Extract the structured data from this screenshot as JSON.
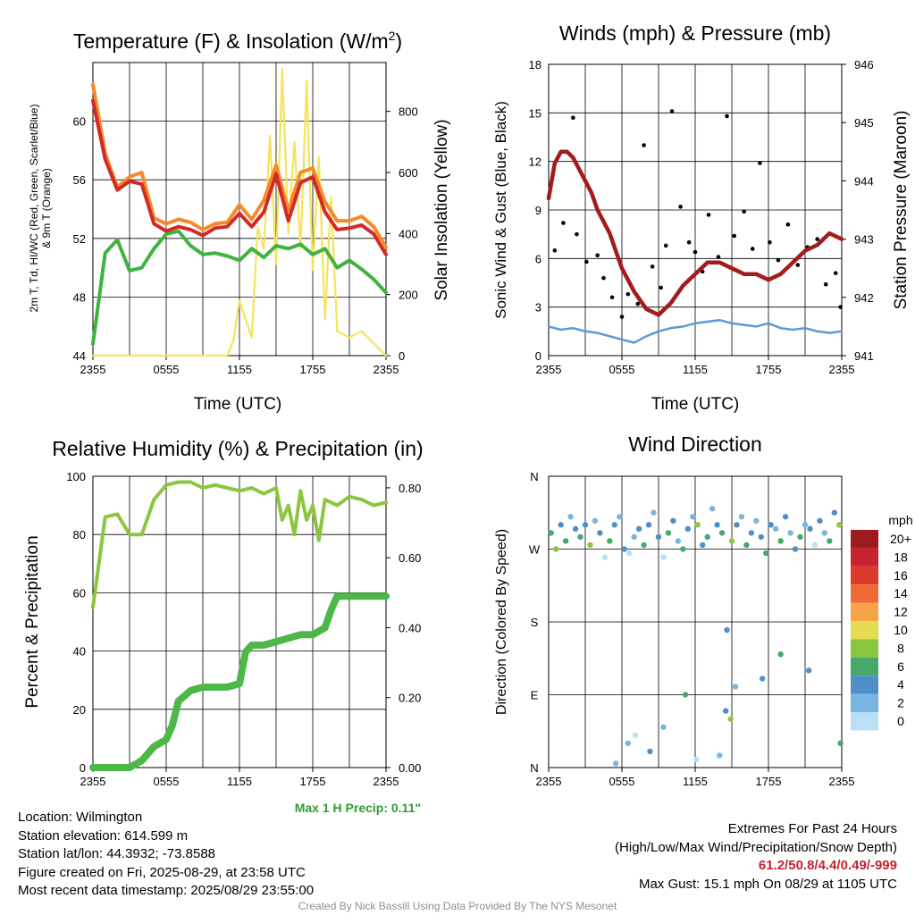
{
  "colors": {
    "temp_red": "#d42a26",
    "temp_orange": "#f58a2a",
    "temp_green": "#3fb33f",
    "insolation_yellow": "#f6e35a",
    "wind_blue": "#5b9bd5",
    "pressure_maroon": "#a31b1b",
    "rh_green": "#8cc63f",
    "precip_green": "#4cb848"
  },
  "chart_data": [
    {
      "id": "temp",
      "type": "line",
      "title": "Temperature (F) & Insolation (W/m²)",
      "title_main": "Temperature (F) & Insolation (W/m",
      "title_sup": "2",
      "title_end": ")",
      "xlabel": "Time (UTC)",
      "ylabel_line1": "2m T, Td, HI/WC (Red, Green, Scarlet/Blue)",
      "ylabel_line2": "& 9m T (Orange)",
      "y2label": "Solar Insolation (Yellow)",
      "xticks": [
        "2355",
        "0555",
        "1155",
        "1755",
        "2355"
      ],
      "ylim": [
        44,
        64
      ],
      "yticks": [
        44,
        48,
        52,
        56,
        60
      ],
      "y2lim": [
        0,
        960
      ],
      "y2ticks": [
        0,
        200,
        400,
        600,
        800
      ],
      "series": [
        {
          "key": "orange",
          "x": [
            0,
            1,
            2,
            3,
            4,
            5,
            6,
            7,
            8,
            9,
            10,
            11,
            12,
            13,
            14,
            15,
            16,
            17,
            18,
            19,
            20,
            21,
            22,
            23,
            24
          ],
          "values": [
            62.5,
            57.8,
            55.5,
            56.2,
            56.5,
            53.4,
            53.0,
            53.3,
            53.1,
            52.6,
            53.0,
            53.1,
            54.3,
            53.3,
            54.6,
            57.0,
            53.9,
            56.5,
            56.8,
            54.5,
            53.2,
            53.2,
            53.5,
            52.8,
            51.4
          ]
        },
        {
          "key": "red",
          "x": [
            0,
            1,
            2,
            3,
            4,
            5,
            6,
            7,
            8,
            9,
            10,
            11,
            12,
            13,
            14,
            15,
            16,
            17,
            18,
            19,
            20,
            21,
            22,
            23,
            24
          ],
          "values": [
            61.4,
            57.4,
            55.3,
            55.9,
            55.7,
            53.0,
            52.5,
            52.8,
            52.6,
            52.2,
            52.7,
            52.8,
            53.7,
            52.8,
            53.8,
            56.4,
            53.2,
            55.8,
            56.2,
            53.8,
            52.6,
            52.7,
            52.9,
            52.3,
            50.9
          ]
        },
        {
          "key": "green",
          "x": [
            0,
            1,
            2,
            3,
            4,
            5,
            6,
            7,
            8,
            9,
            10,
            11,
            12,
            13,
            14,
            15,
            16,
            17,
            18,
            19,
            20,
            21,
            22,
            23,
            24
          ],
          "values": [
            44.8,
            51.0,
            51.9,
            49.8,
            50.0,
            51.3,
            52.3,
            52.5,
            51.5,
            50.9,
            51.0,
            50.8,
            50.5,
            51.3,
            50.7,
            51.5,
            51.3,
            51.6,
            50.9,
            51.3,
            50.0,
            50.5,
            49.9,
            49.2,
            48.3
          ]
        },
        {
          "key": "yellow",
          "axis": "y2",
          "x": [
            0,
            1,
            2,
            3,
            4,
            5,
            6,
            7,
            8,
            9,
            10,
            11,
            11.5,
            12,
            12.5,
            13,
            13.5,
            14,
            14.5,
            15,
            15.5,
            16,
            16.5,
            17,
            17.5,
            18,
            18.5,
            19,
            19.5,
            20,
            21,
            22,
            23,
            24
          ],
          "values": [
            0,
            0,
            0,
            0,
            0,
            0,
            0,
            0,
            0,
            0,
            0,
            0,
            50,
            180,
            120,
            60,
            420,
            350,
            720,
            300,
            940,
            400,
            700,
            350,
            900,
            280,
            650,
            120,
            520,
            80,
            60,
            80,
            40,
            0
          ]
        }
      ]
    },
    {
      "id": "wind",
      "type": "scatter",
      "title": "Winds (mph) & Pressure (mb)",
      "xlabel": "Time (UTC)",
      "ylabel": "Sonic Wind & Gust (Blue, Black)",
      "y2label": "Station Pressure (Maroon)",
      "xticks": [
        "2355",
        "0555",
        "1155",
        "1755",
        "2355"
      ],
      "ylim": [
        0,
        18
      ],
      "yticks": [
        0,
        3,
        6,
        9,
        12,
        15,
        18
      ],
      "y2lim": [
        941,
        946
      ],
      "y2ticks": [
        941,
        942,
        943,
        944,
        945,
        946
      ],
      "series": [
        {
          "key": "wind",
          "x": [
            0,
            1,
            2,
            3,
            4,
            5,
            6,
            7,
            8,
            9,
            10,
            11,
            12,
            13,
            14,
            15,
            16,
            17,
            18,
            19,
            20,
            21,
            22,
            23,
            24
          ],
          "values": [
            1.8,
            1.6,
            1.7,
            1.5,
            1.4,
            1.2,
            1.0,
            0.8,
            1.2,
            1.5,
            1.7,
            1.8,
            2.0,
            2.1,
            2.2,
            2.0,
            1.9,
            1.8,
            2.0,
            1.7,
            1.6,
            1.7,
            1.5,
            1.4,
            1.5
          ]
        },
        {
          "key": "gust",
          "x": [
            0.5,
            1.2,
            2.0,
            2.3,
            3.1,
            4.0,
            4.5,
            5.2,
            6.0,
            6.5,
            7.3,
            7.8,
            8.5,
            9.2,
            9.6,
            10.1,
            10.8,
            11.5,
            12.0,
            12.6,
            13.1,
            13.9,
            14.6,
            15.2,
            16.0,
            16.7,
            17.3,
            18.1,
            18.8,
            19.6,
            20.4,
            21.2,
            22.0,
            22.7,
            23.5,
            23.9
          ],
          "values": [
            6.5,
            8.2,
            14.7,
            7.5,
            5.8,
            6.2,
            4.8,
            3.6,
            2.4,
            3.8,
            3.2,
            13.0,
            5.5,
            4.2,
            6.8,
            15.1,
            9.2,
            7.0,
            6.4,
            5.2,
            8.7,
            6.1,
            14.8,
            7.4,
            8.9,
            6.6,
            11.9,
            7.0,
            5.9,
            8.1,
            5.6,
            6.7,
            7.2,
            4.4,
            5.1,
            3.0
          ]
        },
        {
          "key": "pressure",
          "axis": "y2",
          "x": [
            0,
            0.5,
            1,
            1.5,
            2,
            2.5,
            3,
            3.5,
            4,
            5,
            6,
            7,
            8,
            9,
            10,
            11,
            12,
            13,
            14,
            15,
            16,
            17,
            18,
            19,
            20,
            21,
            22,
            23,
            24
          ],
          "values": [
            943.7,
            944.3,
            944.5,
            944.5,
            944.4,
            944.2,
            944.0,
            943.8,
            943.5,
            943.1,
            942.5,
            942.1,
            941.8,
            941.7,
            941.9,
            942.2,
            942.4,
            942.6,
            942.6,
            942.5,
            942.4,
            942.4,
            942.3,
            942.4,
            942.6,
            942.8,
            942.9,
            943.1,
            943.0
          ]
        }
      ]
    },
    {
      "id": "rh",
      "type": "line",
      "title": "Relative Humidity (%) & Precipitation (in)",
      "ylabel": "Percent & Precipitation",
      "xticks": [
        "2355",
        "0555",
        "1155",
        "1755",
        "2355"
      ],
      "ylim": [
        0,
        100
      ],
      "yticks": [
        0,
        20,
        40,
        60,
        80,
        100
      ],
      "y2lim": [
        0,
        0.833
      ],
      "y2ticks": [
        "0.00",
        "0.20",
        "0.40",
        "0.60",
        "0.80"
      ],
      "series": [
        {
          "key": "rh",
          "x": [
            0,
            1,
            2,
            3,
            4,
            5,
            6,
            7,
            8,
            9,
            10,
            11,
            12,
            13,
            14,
            15,
            15.5,
            16,
            16.5,
            17,
            17.5,
            18,
            18.5,
            19,
            20,
            21,
            22,
            23,
            24
          ],
          "values": [
            55,
            86,
            87,
            80,
            80,
            92,
            97,
            98,
            98,
            96,
            97,
            96,
            95,
            96,
            94,
            96,
            85,
            90,
            80,
            95,
            85,
            90,
            78,
            92,
            90,
            93,
            92,
            90,
            91
          ]
        },
        {
          "key": "precip",
          "axis": "y2",
          "x": [
            0,
            3,
            4,
            5,
            6,
            6.5,
            7,
            8,
            9,
            10,
            11,
            12,
            12.5,
            13,
            14,
            15,
            16,
            17,
            18,
            19,
            19.5,
            20,
            21,
            22,
            23,
            24
          ],
          "values": [
            0,
            0,
            0.02,
            0.06,
            0.08,
            0.12,
            0.19,
            0.22,
            0.23,
            0.23,
            0.23,
            0.24,
            0.33,
            0.35,
            0.35,
            0.36,
            0.37,
            0.38,
            0.38,
            0.4,
            0.45,
            0.49,
            0.49,
            0.49,
            0.49,
            0.49
          ]
        }
      ]
    },
    {
      "id": "wdir",
      "type": "scatter",
      "title": "Wind Direction",
      "ylabel": "Direction (Colored By Speed)",
      "xticks": [
        "2355",
        "0555",
        "1155",
        "1755",
        "2355"
      ],
      "yticks": [
        "N",
        "E",
        "S",
        "W",
        "N"
      ],
      "ylim": [
        0,
        360
      ],
      "legend_title": "mph",
      "legend_labels": [
        "20+",
        "18",
        "16",
        "14",
        "12",
        "10",
        "8",
        "6",
        "4",
        "2",
        "0"
      ],
      "legend_colors": [
        "#9e1a1e",
        "#c8212f",
        "#dd3a2e",
        "#ef6a35",
        "#f7a348",
        "#e4dd54",
        "#8cc63f",
        "#46a86a",
        "#4f8fc8",
        "#7ab5e2",
        "#b9e0f7"
      ],
      "points": {
        "x": [
          0.2,
          0.6,
          1.0,
          1.4,
          1.8,
          2.2,
          2.6,
          3.0,
          3.4,
          3.8,
          4.2,
          4.6,
          5.0,
          5.4,
          5.8,
          6.2,
          6.6,
          7.0,
          7.4,
          7.8,
          8.2,
          8.6,
          9.0,
          9.4,
          9.8,
          10.2,
          10.6,
          11.0,
          11.4,
          11.8,
          12.2,
          12.6,
          13.0,
          13.4,
          13.8,
          14.2,
          14.6,
          15.0,
          15.4,
          15.8,
          16.2,
          16.6,
          17.0,
          17.4,
          17.8,
          18.2,
          18.6,
          19.0,
          19.4,
          19.8,
          20.2,
          20.6,
          21.0,
          21.4,
          21.8,
          22.2,
          22.6,
          23.0,
          23.4,
          23.8,
          6.5,
          7.1,
          8.3,
          9.4,
          11.2,
          14.5,
          14.9,
          15.3,
          17.5,
          19.0,
          21.3,
          23.9,
          5.5,
          12.1,
          14.0
        ],
        "values": [
          290,
          270,
          300,
          280,
          310,
          295,
          285,
          300,
          275,
          305,
          290,
          260,
          280,
          300,
          310,
          270,
          265,
          285,
          295,
          275,
          300,
          315,
          285,
          260,
          290,
          305,
          280,
          270,
          295,
          310,
          300,
          275,
          285,
          320,
          300,
          290,
          170,
          280,
          300,
          310,
          275,
          290,
          305,
          285,
          265,
          300,
          295,
          280,
          310,
          290,
          270,
          285,
          300,
          295,
          275,
          305,
          290,
          280,
          315,
          300,
          30,
          40,
          20,
          50,
          90,
          70,
          60,
          100,
          110,
          140,
          120,
          30,
          5,
          10,
          15
        ],
        "speeds": [
          3,
          4,
          2,
          3,
          1,
          2,
          3,
          2,
          4,
          1,
          2,
          0,
          3,
          2,
          1,
          2,
          0,
          1,
          2,
          3,
          2,
          1,
          2,
          0,
          3,
          2,
          1,
          3,
          2,
          1,
          4,
          2,
          3,
          1,
          2,
          3,
          2,
          4,
          2,
          1,
          3,
          2,
          1,
          2,
          3,
          2,
          1,
          3,
          2,
          1,
          2,
          3,
          1,
          2,
          0,
          2,
          1,
          3,
          2,
          4,
          1,
          0,
          2,
          1,
          3,
          2,
          4,
          1,
          2,
          3,
          2,
          3,
          1,
          0,
          1
        ]
      }
    }
  ],
  "max_precip_label": "Max 1 H Precip: 0.11\"",
  "info": {
    "location": "Location: Wilmington",
    "elevation": "Station elevation: 614.599 m",
    "latlon": "Station lat/lon: 44.3932; -73.8588",
    "created": "Figure created on Fri, 2025-08-29, at 23:58 UTC",
    "recent": "Most recent data timestamp: 2025/08/29 23:55:00"
  },
  "extremes": {
    "title": "Extremes For Past 24 Hours",
    "subtitle": "(High/Low/Max Wind/Precipitation/Snow Depth)",
    "values": "61.2/50.8/4.4/0.49/-999",
    "gust": "Max Gust: 15.1 mph On 08/29 at 1105 UTC"
  },
  "credit": "Created By Nick Bassill Using Data Provided By The NYS Mesonet"
}
